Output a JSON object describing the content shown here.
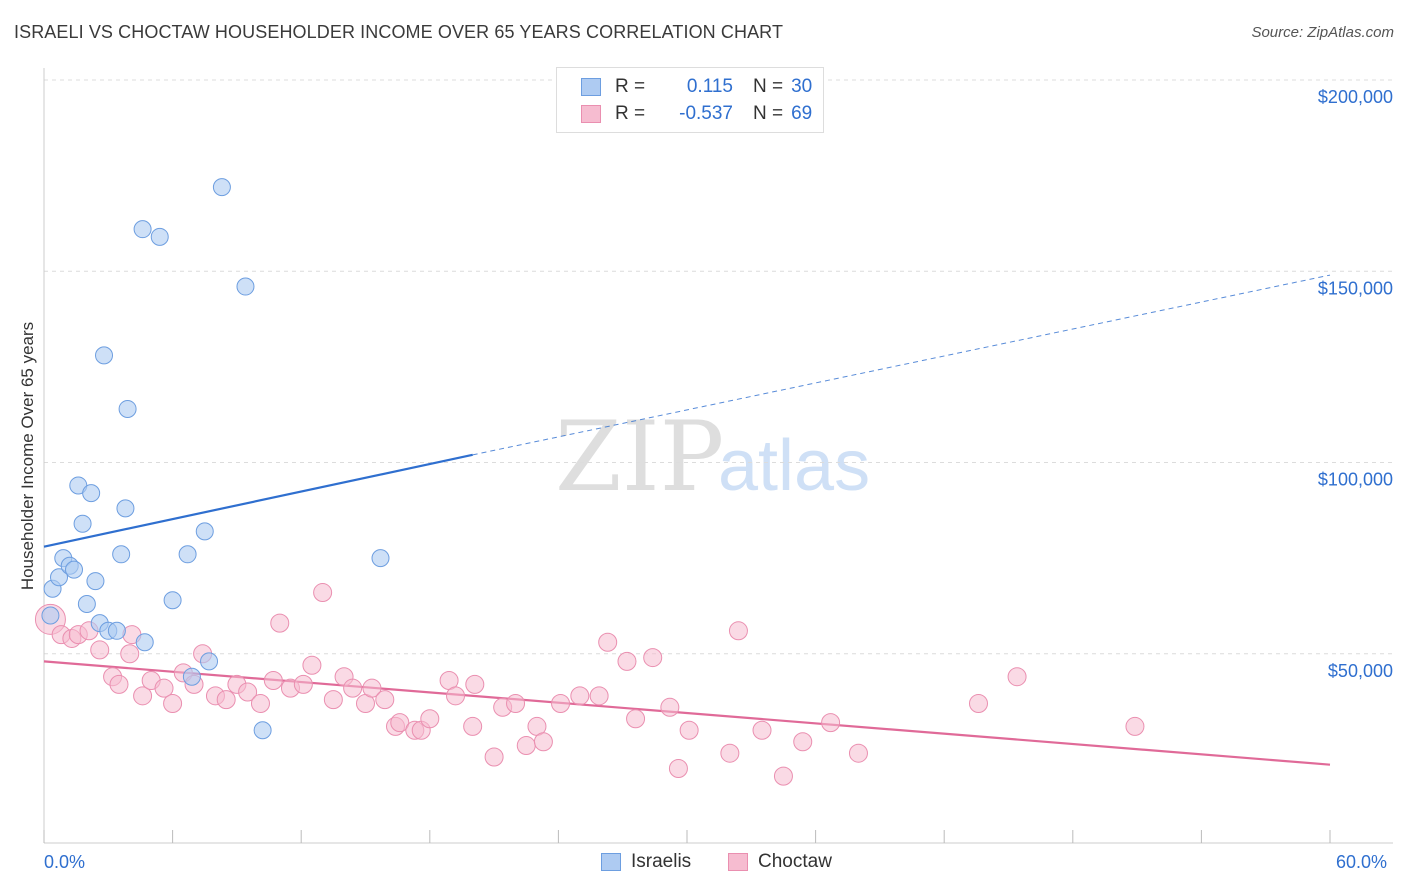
{
  "title": "ISRAELI VS CHOCTAW HOUSEHOLDER INCOME OVER 65 YEARS CORRELATION CHART",
  "source": "Source: ZipAtlas.com",
  "watermark": {
    "zip": "ZIP",
    "atlas": "atlas"
  },
  "legend": {
    "israelis": {
      "r_label": "R =",
      "r_value": "0.115",
      "n_label": "N =",
      "n_value": "30"
    },
    "choctaw": {
      "r_label": "R =",
      "r_value": "-0.537",
      "n_label": "N =",
      "n_value": "69"
    }
  },
  "bottom_legend": {
    "israelis": "Israelis",
    "choctaw": "Choctaw"
  },
  "x_axis_labels": {
    "min": "0.0%",
    "max": "60.0%"
  },
  "colors": {
    "israelis_fill": "#aecbf2",
    "israelis_stroke": "#6d9ee0",
    "israelis_line": "#2f6fcf",
    "choctaw_fill": "#f6bcd0",
    "choctaw_stroke": "#ea8fb0",
    "choctaw_line": "#e06a98",
    "tick_text": "#2f6fcf",
    "grid": "#dcdcdc"
  },
  "chart_data": {
    "type": "scatter",
    "title": "ISRAELI VS CHOCTAW HOUSEHOLDER INCOME OVER 65 YEARS CORRELATION CHART",
    "xlabel": "",
    "ylabel": "Householder Income Over 65 years",
    "xlim": [
      0,
      60
    ],
    "ylim": [
      0,
      205000
    ],
    "y_ticks": [
      50000,
      100000,
      150000,
      200000
    ],
    "y_tick_labels": [
      "$50,000",
      "$100,000",
      "$150,000",
      "$200,000"
    ],
    "grid": true,
    "legend_position": "top-center",
    "series": [
      {
        "name": "Israelis",
        "points": [
          [
            0.3,
            60000
          ],
          [
            0.4,
            67000
          ],
          [
            0.7,
            70000
          ],
          [
            0.9,
            75000
          ],
          [
            1.2,
            73000
          ],
          [
            1.4,
            72000
          ],
          [
            1.6,
            94000
          ],
          [
            1.8,
            84000
          ],
          [
            2.0,
            63000
          ],
          [
            2.2,
            92000
          ],
          [
            2.4,
            69000
          ],
          [
            2.6,
            58000
          ],
          [
            2.8,
            128000
          ],
          [
            3.0,
            56000
          ],
          [
            3.4,
            56000
          ],
          [
            3.6,
            76000
          ],
          [
            3.8,
            88000
          ],
          [
            3.9,
            114000
          ],
          [
            4.6,
            161000
          ],
          [
            4.7,
            53000
          ],
          [
            5.4,
            159000
          ],
          [
            6.0,
            64000
          ],
          [
            6.7,
            76000
          ],
          [
            6.9,
            44000
          ],
          [
            7.5,
            82000
          ],
          [
            7.7,
            48000
          ],
          [
            8.3,
            172000
          ],
          [
            9.4,
            146000
          ],
          [
            10.2,
            30000
          ],
          [
            15.7,
            75000
          ]
        ],
        "trend": {
          "x": [
            0,
            20
          ],
          "y": [
            78000,
            102000
          ],
          "extended_to": [
            60,
            149000
          ]
        }
      },
      {
        "name": "Choctaw",
        "points": [
          [
            0.3,
            59000
          ],
          [
            0.8,
            55000
          ],
          [
            1.3,
            54000
          ],
          [
            1.6,
            55000
          ],
          [
            2.1,
            56000
          ],
          [
            2.6,
            51000
          ],
          [
            3.2,
            44000
          ],
          [
            3.5,
            42000
          ],
          [
            4.0,
            50000
          ],
          [
            4.1,
            55000
          ],
          [
            4.6,
            39000
          ],
          [
            5.0,
            43000
          ],
          [
            5.6,
            41000
          ],
          [
            6.0,
            37000
          ],
          [
            6.5,
            45000
          ],
          [
            7.0,
            42000
          ],
          [
            7.4,
            50000
          ],
          [
            8.0,
            39000
          ],
          [
            8.5,
            38000
          ],
          [
            9.0,
            42000
          ],
          [
            9.5,
            40000
          ],
          [
            10.1,
            37000
          ],
          [
            10.7,
            43000
          ],
          [
            11.0,
            58000
          ],
          [
            11.5,
            41000
          ],
          [
            12.1,
            42000
          ],
          [
            12.5,
            47000
          ],
          [
            13.0,
            66000
          ],
          [
            13.5,
            38000
          ],
          [
            14.0,
            44000
          ],
          [
            14.4,
            41000
          ],
          [
            15.0,
            37000
          ],
          [
            15.3,
            41000
          ],
          [
            15.9,
            38000
          ],
          [
            16.4,
            31000
          ],
          [
            16.6,
            32000
          ],
          [
            17.3,
            30000
          ],
          [
            17.6,
            30000
          ],
          [
            18.0,
            33000
          ],
          [
            18.9,
            43000
          ],
          [
            19.2,
            39000
          ],
          [
            20.0,
            31000
          ],
          [
            20.1,
            42000
          ],
          [
            21.0,
            23000
          ],
          [
            21.4,
            36000
          ],
          [
            22.0,
            37000
          ],
          [
            22.5,
            26000
          ],
          [
            23.0,
            31000
          ],
          [
            23.3,
            27000
          ],
          [
            24.1,
            37000
          ],
          [
            25.0,
            39000
          ],
          [
            25.9,
            39000
          ],
          [
            26.3,
            53000
          ],
          [
            27.2,
            48000
          ],
          [
            27.6,
            33000
          ],
          [
            28.4,
            49000
          ],
          [
            29.2,
            36000
          ],
          [
            29.6,
            20000
          ],
          [
            30.1,
            30000
          ],
          [
            32.0,
            24000
          ],
          [
            32.4,
            56000
          ],
          [
            33.5,
            30000
          ],
          [
            34.5,
            18000
          ],
          [
            35.4,
            27000
          ],
          [
            36.7,
            32000
          ],
          [
            38.0,
            24000
          ],
          [
            43.6,
            37000
          ],
          [
            45.4,
            44000
          ],
          [
            50.9,
            31000
          ]
        ],
        "trend": {
          "x": [
            0,
            60
          ],
          "y": [
            48000,
            21000
          ]
        }
      }
    ]
  }
}
